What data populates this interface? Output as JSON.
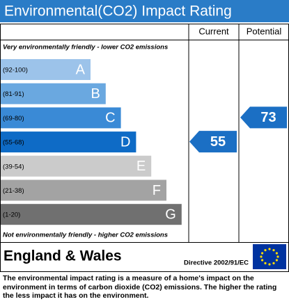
{
  "chart_data": {
    "type": "epc",
    "title": "Environmental(CO2) Impact Rating",
    "columns": [
      "Current",
      "Potential"
    ],
    "top_note": "Very environmentally friendly - lower CO2 emissions",
    "bottom_note": "Not environmentally friendly - higher CO2 emissions",
    "bands": [
      {
        "range": "(92-100)",
        "letter": "A",
        "color": "#9cc3ea"
      },
      {
        "range": "(81-91)",
        "letter": "B",
        "color": "#6aa8e0"
      },
      {
        "range": "(69-80)",
        "letter": "C",
        "color": "#3a8ad6"
      },
      {
        "range": "(55-68)",
        "letter": "D",
        "color": "#0e6bc6"
      },
      {
        "range": "(39-54)",
        "letter": "E",
        "color": "#cbcbcb"
      },
      {
        "range": "(21-38)",
        "letter": "F",
        "color": "#a3a3a3"
      },
      {
        "range": "(1-20)",
        "letter": "G",
        "color": "#707070"
      }
    ],
    "current": 55,
    "potential": 73,
    "arrow_color": "#1b6fc4",
    "region": "England & Wales",
    "directive": "Directive 2002/91/EC",
    "footer": "The environmental impact rating is a measure of a home's impact on the environment in terms of carbon dioxide (CO2) emissions. The higher the rating the less impact it has on the environment."
  }
}
